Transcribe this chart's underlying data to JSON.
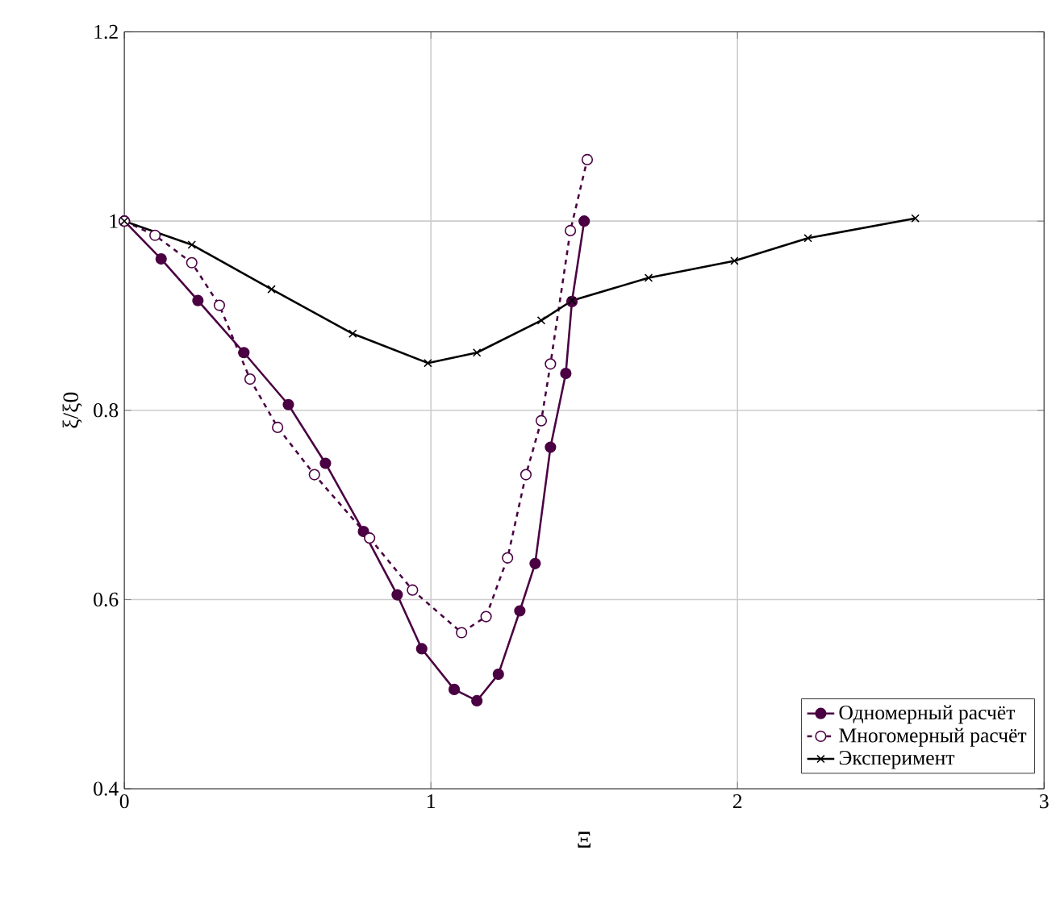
{
  "chart_data": {
    "type": "line",
    "xlabel": "Ξ",
    "ylabel": "ξ/ξ0",
    "xlim": [
      0,
      3
    ],
    "ylim": [
      0.4,
      1.2
    ],
    "xticks": [
      0,
      1,
      2,
      3
    ],
    "yticks": [
      0.4,
      0.6,
      0.8,
      1,
      1.2
    ],
    "grid": true,
    "legend": "bottom right",
    "series": [
      {
        "name": "Одномерный расчёт",
        "color": "#4a0042",
        "marker": "circle",
        "line_style": "solid",
        "x": [
          0,
          0.12,
          0.24,
          0.39,
          0.535,
          0.656,
          0.78,
          0.89,
          0.97,
          1.076,
          1.15,
          1.22,
          1.29,
          1.34,
          1.39,
          1.44,
          1.46,
          1.5
        ],
        "values": [
          1,
          0.96,
          0.916,
          0.861,
          0.806,
          0.744,
          0.672,
          0.605,
          0.548,
          0.505,
          0.493,
          0.521,
          0.588,
          0.638,
          0.761,
          0.839,
          0.915,
          1.0
        ]
      },
      {
        "name": "Многомерный расчёт",
        "color": "#4a0042",
        "marker": "circle",
        "line_style": "dashed",
        "x": [
          0,
          0.1,
          0.22,
          0.31,
          0.41,
          0.5,
          0.62,
          0.8,
          0.94,
          1.1,
          1.18,
          1.25,
          1.31,
          1.36,
          1.39,
          1.455,
          1.51
        ],
        "values": [
          1,
          0.985,
          0.956,
          0.911,
          0.833,
          0.782,
          0.732,
          0.665,
          0.61,
          0.565,
          0.582,
          0.644,
          0.732,
          0.789,
          0.849,
          0.99,
          1.065
        ]
      },
      {
        "name": "Эксперимент",
        "color": "#000000",
        "marker": "cross",
        "line_style": "solid",
        "x": [
          0,
          0.22,
          0.48,
          0.745,
          0.99,
          1.15,
          1.36,
          1.46,
          1.71,
          1.99,
          2.23,
          2.58
        ],
        "values": [
          1,
          0.975,
          0.928,
          0.881,
          0.85,
          0.861,
          0.895,
          0.916,
          0.94,
          0.958,
          0.982,
          1.003
        ]
      }
    ]
  }
}
